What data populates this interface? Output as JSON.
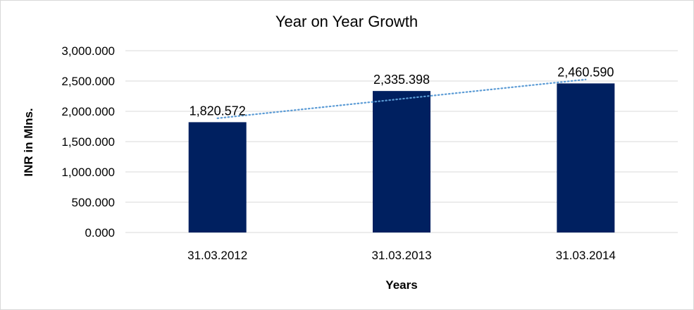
{
  "chart_data": {
    "type": "bar",
    "title": "Year on Year Growth",
    "xlabel": "Years",
    "ylabel": "INR in Mlns.",
    "categories": [
      "31.03.2012",
      "31.03.2013",
      "31.03.2014"
    ],
    "values": [
      1820.572,
      2335.398,
      2460.59
    ],
    "data_labels": [
      "1,820.572",
      "2,335.398",
      "2,460.590"
    ],
    "ylim": [
      0,
      3000
    ],
    "y_ticks": [
      0,
      500,
      1000,
      1500,
      2000,
      2500,
      3000
    ],
    "y_tick_labels": [
      "0.000",
      "500.000",
      "1,000.000",
      "1,500.000",
      "2,000.000",
      "2,500.000",
      "3,000.000"
    ],
    "grid": true,
    "trendline": "linear",
    "colors": {
      "bar": "#002060",
      "trendline": "#5b9bd5",
      "grid": "#d9d9d9"
    }
  }
}
